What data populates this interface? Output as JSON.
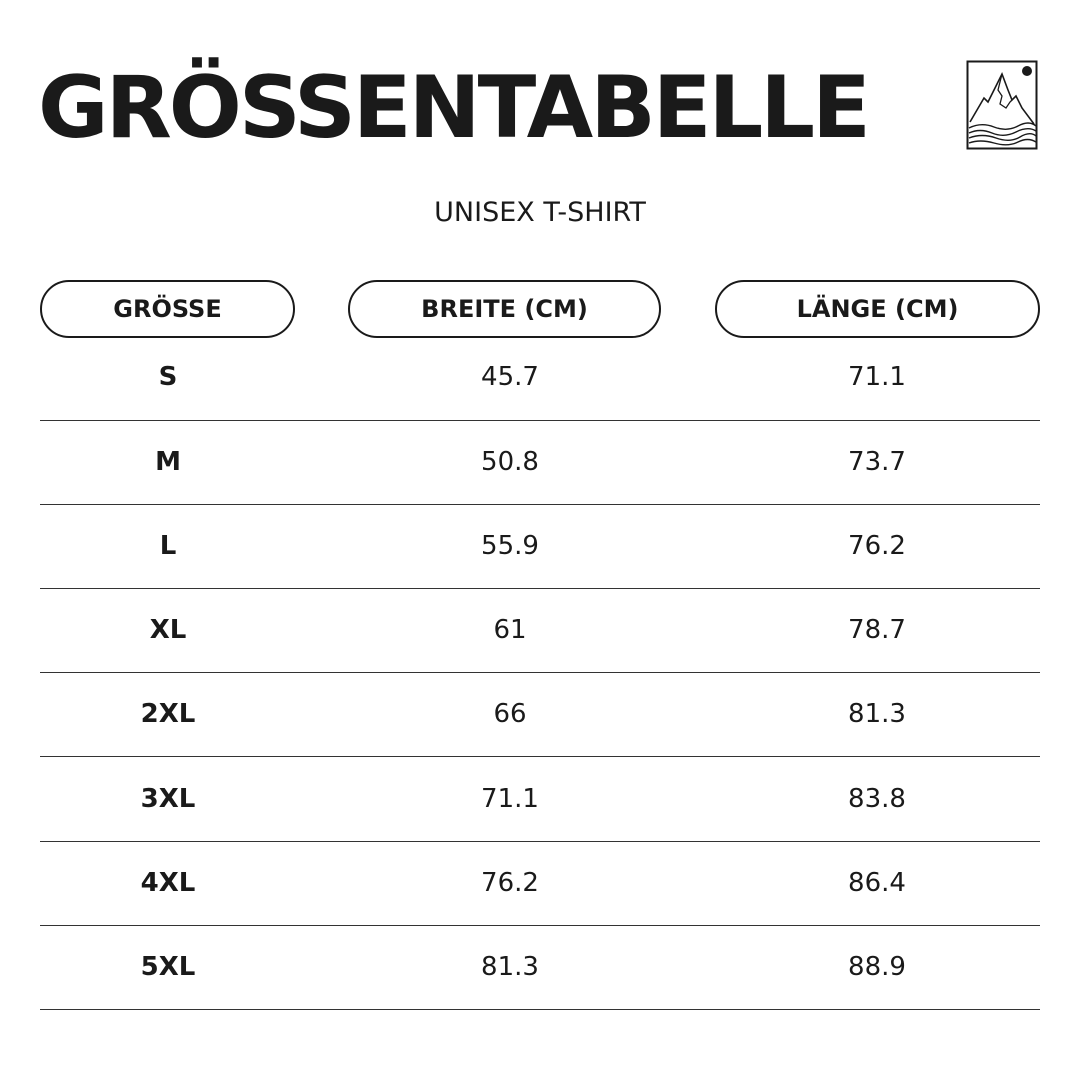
{
  "title": "GRÖSSENTABELLE",
  "subtitle": "UNISEX T-SHIRT",
  "logo": "mountain-sun-waves-logo",
  "headers": [
    "GRÖSSE",
    "BREITE (CM)",
    "LÄNGE (CM)"
  ],
  "rows": [
    {
      "size": "S",
      "width": "45.7",
      "length": "71.1"
    },
    {
      "size": "M",
      "width": "50.8",
      "length": "73.7"
    },
    {
      "size": "L",
      "width": "55.9",
      "length": "76.2"
    },
    {
      "size": "XL",
      "width": "61",
      "length": "78.7"
    },
    {
      "size": "2XL",
      "width": "66",
      "length": "81.3"
    },
    {
      "size": "3XL",
      "width": "71.1",
      "length": "83.8"
    },
    {
      "size": "4XL",
      "width": "76.2",
      "length": "86.4"
    },
    {
      "size": "5XL",
      "width": "81.3",
      "length": "88.9"
    }
  ]
}
